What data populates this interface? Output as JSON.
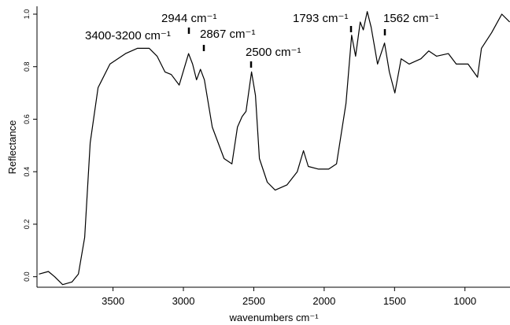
{
  "chart_data": {
    "type": "line",
    "x_label": "wavenumbers cm⁻¹",
    "y_label": "Reflectance",
    "xlim": [
      4040,
      680
    ],
    "ylim": [
      -0.04,
      1.03
    ],
    "xticks": [
      3500,
      3000,
      2500,
      2000,
      1500,
      1000
    ],
    "yticks": [
      {
        "value": 0,
        "label": "0.0"
      },
      0.2,
      0.4,
      0.6,
      0.8,
      {
        "value": 1,
        "label": "1.0"
      }
    ],
    "annotations": [
      "3400-3200 cm⁻¹",
      "2944 cm⁻¹",
      "2867 cm⁻¹",
      "2500 cm⁻¹",
      "1793 cm⁻¹",
      "1562 cm⁻¹"
    ],
    "series": [
      {
        "color": "#000000",
        "x": [
          4026,
          3959,
          3914,
          3858,
          3791,
          3746,
          3701,
          3662,
          3606,
          3522,
          3411,
          3327,
          3243,
          3187,
          3131,
          3086,
          3030,
          2963,
          2935,
          2907,
          2879,
          2851,
          2795,
          2711,
          2655,
          2616,
          2583,
          2555,
          2516,
          2488,
          2460,
          2404,
          2348,
          2264,
          2191,
          2147,
          2113,
          2040,
          1968,
          1912,
          1845,
          1805,
          1777,
          1744,
          1722,
          1694,
          1666,
          1621,
          1571,
          1537,
          1498,
          1453,
          1397,
          1313,
          1257,
          1202,
          1118,
          1062,
          978,
          911,
          883,
          810,
          738,
          682
        ],
        "values": [
          0.01,
          0.02,
          0.0,
          -0.03,
          -0.02,
          0.01,
          0.15,
          0.51,
          0.72,
          0.81,
          0.85,
          0.87,
          0.87,
          0.84,
          0.78,
          0.77,
          0.73,
          0.85,
          0.81,
          0.75,
          0.79,
          0.75,
          0.57,
          0.45,
          0.43,
          0.57,
          0.61,
          0.63,
          0.78,
          0.69,
          0.45,
          0.36,
          0.33,
          0.35,
          0.4,
          0.48,
          0.42,
          0.41,
          0.41,
          0.43,
          0.66,
          0.92,
          0.84,
          0.97,
          0.94,
          1.01,
          0.95,
          0.81,
          0.89,
          0.78,
          0.7,
          0.83,
          0.81,
          0.83,
          0.86,
          0.84,
          0.85,
          0.81,
          0.81,
          0.76,
          0.87,
          0.93,
          1.0,
          0.97
        ]
      }
    ]
  }
}
